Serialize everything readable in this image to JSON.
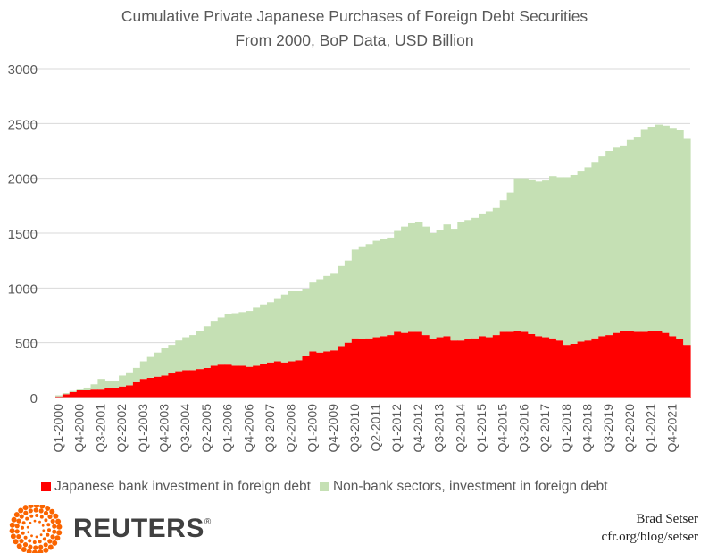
{
  "chart_data": {
    "type": "area",
    "stacked": true,
    "title": "Cumulative Private Japanese Purchases of Foreign Debt Securities",
    "subtitle": "From 2000, BoP Data, USD Billion",
    "xlabel": "",
    "ylabel": "",
    "ylim": [
      0,
      3000
    ],
    "y_ticks": [
      "0",
      "500",
      "1000",
      "1500",
      "2000",
      "2500",
      "3000"
    ],
    "y_tick_values": [
      0,
      500,
      1000,
      1500,
      2000,
      2500,
      3000
    ],
    "x_start": "Q1-2000",
    "x_end": "Q2-2022",
    "x_tick_every": 3,
    "x_tick_labels": [
      "Q1-2000",
      "Q4-2000",
      "Q3-2001",
      "Q2-2002",
      "Q1-2003",
      "Q4-2003",
      "Q3-2004",
      "Q2-2005",
      "Q1-2006",
      "Q4-2006",
      "Q3-2007",
      "Q2-2008",
      "Q1-2009",
      "Q4-2009",
      "Q3-2010",
      "Q2-2011",
      "Q1-2012",
      "Q4-2012",
      "Q3-2013",
      "Q2-2014",
      "Q1-2015",
      "Q4-2015",
      "Q3-2016",
      "Q2-2017",
      "Q1-2018",
      "Q4-2018",
      "Q3-2019",
      "Q2-2020",
      "Q1-2021",
      "Q4-2021"
    ],
    "grid": true,
    "legend_position": "bottom",
    "series": [
      {
        "name": "Japanese bank investment in foreign debt",
        "color": "#ff0000",
        "values": [
          10,
          30,
          50,
          70,
          70,
          80,
          80,
          90,
          90,
          100,
          110,
          140,
          170,
          180,
          190,
          200,
          220,
          240,
          250,
          250,
          260,
          270,
          290,
          300,
          300,
          290,
          290,
          280,
          290,
          310,
          320,
          330,
          320,
          330,
          340,
          380,
          420,
          410,
          420,
          430,
          470,
          500,
          540,
          530,
          540,
          550,
          560,
          570,
          600,
          590,
          600,
          600,
          570,
          530,
          550,
          560,
          520,
          520,
          530,
          540,
          560,
          550,
          570,
          600,
          600,
          610,
          600,
          580,
          560,
          550,
          540,
          520,
          480,
          490,
          510,
          520,
          540,
          560,
          570,
          590,
          610,
          610,
          600,
          600,
          610,
          610,
          590,
          560,
          530,
          480
        ]
      },
      {
        "name": "Non-bank sectors, investment in foreign debt",
        "color": "#c5e0b4",
        "values": [
          10,
          10,
          10,
          10,
          20,
          40,
          90,
          60,
          60,
          100,
          120,
          130,
          160,
          190,
          220,
          250,
          260,
          280,
          300,
          320,
          350,
          380,
          410,
          430,
          460,
          480,
          490,
          510,
          530,
          540,
          550,
          570,
          620,
          640,
          630,
          610,
          630,
          670,
          690,
          700,
          730,
          750,
          810,
          850,
          860,
          880,
          890,
          890,
          920,
          970,
          990,
          1000,
          990,
          970,
          980,
          1020,
          1020,
          1080,
          1090,
          1100,
          1120,
          1150,
          1160,
          1200,
          1270,
          1390,
          1400,
          1410,
          1410,
          1430,
          1480,
          1490,
          1530,
          1540,
          1560,
          1580,
          1610,
          1640,
          1680,
          1690,
          1690,
          1740,
          1780,
          1850,
          1860,
          1880,
          1890,
          1900,
          1910,
          1880
        ]
      }
    ]
  },
  "credit": {
    "author": "Brad Setser",
    "url": "cfr.org/blog/setser"
  },
  "branding": {
    "logo_text": "REUTERS",
    "registered": "®",
    "logo_color": "#fa6400"
  }
}
